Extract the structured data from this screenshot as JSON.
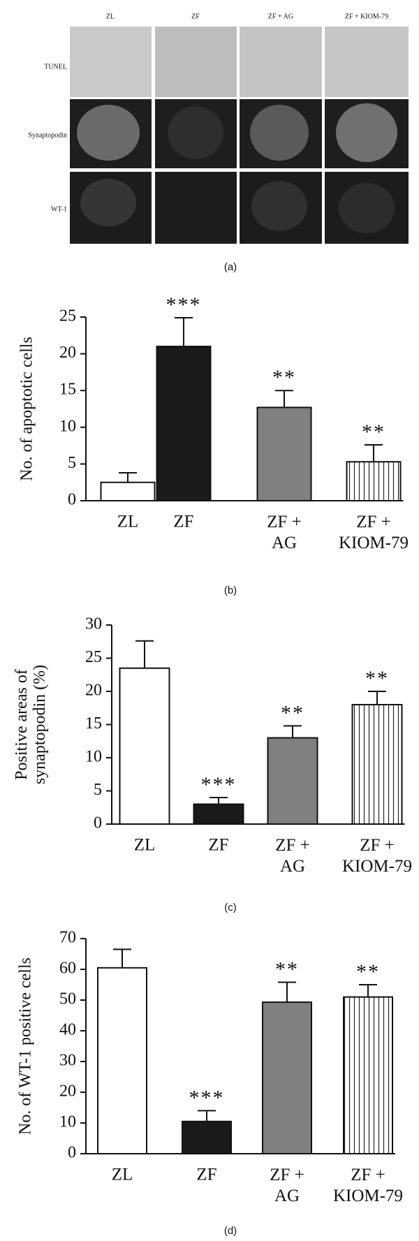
{
  "figure": {
    "panel_labels": [
      "(a)",
      "(b)",
      "(c)",
      "(d)"
    ],
    "panel_a": {
      "columns": [
        "ZL",
        "ZF",
        "ZF + AG",
        "ZF + KIOM-79"
      ],
      "rows": [
        "TUNEL",
        "Synaptopodin",
        "WT-1"
      ]
    }
  },
  "chart_data": [
    {
      "type": "bar",
      "y_label": "No. of apoptotic cells",
      "categories": [
        "ZL",
        "ZF",
        "ZF + AG",
        "ZF + KIOM-79"
      ],
      "values": [
        2.5,
        21,
        12.7,
        5.3
      ],
      "errors": [
        1.3,
        3.9,
        2.3,
        2.3
      ],
      "annotations": [
        null,
        "***",
        "**",
        "**"
      ],
      "colors": [
        "#ffffff",
        "#1a1a1a",
        "#808080",
        "#ffffff"
      ],
      "hatch": [
        false,
        false,
        false,
        true
      ],
      "ylim": [
        0,
        25
      ],
      "yticks": [
        0,
        5,
        10,
        15,
        20,
        25
      ]
    },
    {
      "type": "bar",
      "y_label": "Positive areas of synaptopodin (%)",
      "categories": [
        "ZL",
        "ZF",
        "ZF + AG",
        "ZF + KIOM-79"
      ],
      "values": [
        23.5,
        3,
        13,
        18
      ],
      "errors": [
        4.1,
        1,
        1.8,
        2
      ],
      "annotations": [
        null,
        "***",
        "**",
        "**"
      ],
      "colors": [
        "#ffffff",
        "#1a1a1a",
        "#808080",
        "#ffffff"
      ],
      "hatch": [
        false,
        false,
        false,
        true
      ],
      "ylim": [
        0,
        30
      ],
      "yticks": [
        0,
        5,
        10,
        15,
        20,
        25,
        30
      ]
    },
    {
      "type": "bar",
      "y_label": "No. of WT-1 positive cells",
      "categories": [
        "ZL",
        "ZF",
        "ZF + AG",
        "ZF + KIOM-79"
      ],
      "values": [
        60.5,
        10.5,
        49.3,
        51
      ],
      "errors": [
        6,
        3.5,
        6.5,
        4
      ],
      "annotations": [
        null,
        "***",
        "**",
        "**"
      ],
      "colors": [
        "#ffffff",
        "#1a1a1a",
        "#808080",
        "#ffffff"
      ],
      "hatch": [
        false,
        false,
        false,
        true
      ],
      "ylim": [
        0,
        70
      ],
      "yticks": [
        0,
        10,
        20,
        30,
        40,
        50,
        60,
        70
      ]
    }
  ]
}
